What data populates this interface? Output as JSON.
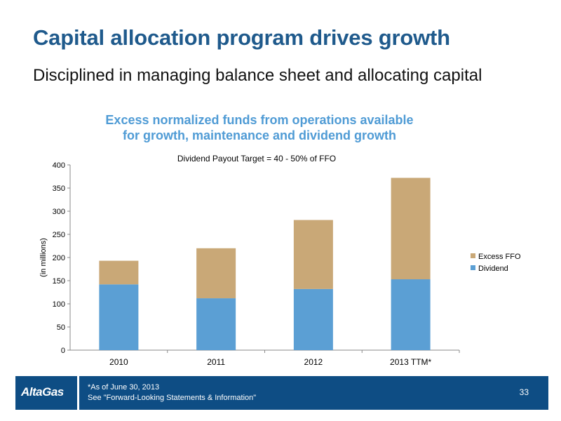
{
  "slide": {
    "title": "Capital allocation program drives growth",
    "subtitle": "Disciplined in managing balance sheet and allocating capital"
  },
  "chart_data": {
    "type": "bar",
    "stacked": true,
    "title_lines": [
      "Excess normalized funds from operations available",
      "for growth, maintenance and dividend growth"
    ],
    "annotation": "Dividend Payout Target = 40 - 50% of FFO",
    "ylabel": "(in millions)",
    "xlabel": "",
    "ylim": [
      0,
      400
    ],
    "yticks": [
      0,
      50,
      100,
      150,
      200,
      250,
      300,
      350,
      400
    ],
    "categories": [
      "2010",
      "2011",
      "2012",
      "2013 TTM*"
    ],
    "series": [
      {
        "name": "Dividend",
        "color": "#5b9fd4",
        "values": [
          142,
          112,
          132,
          153
        ]
      },
      {
        "name": "Excess FFO",
        "color": "#c9a877",
        "values": [
          51,
          108,
          149,
          219
        ]
      }
    ],
    "legend_position": "right",
    "legend_order": [
      "Excess FFO",
      "Dividend"
    ],
    "grid": false
  },
  "footer": {
    "logo_text": "AltaGas",
    "note_line1": "*As of June 30, 2013",
    "note_line2": "See \"Forward-Looking Statements & Information\"",
    "page_number": "33"
  }
}
